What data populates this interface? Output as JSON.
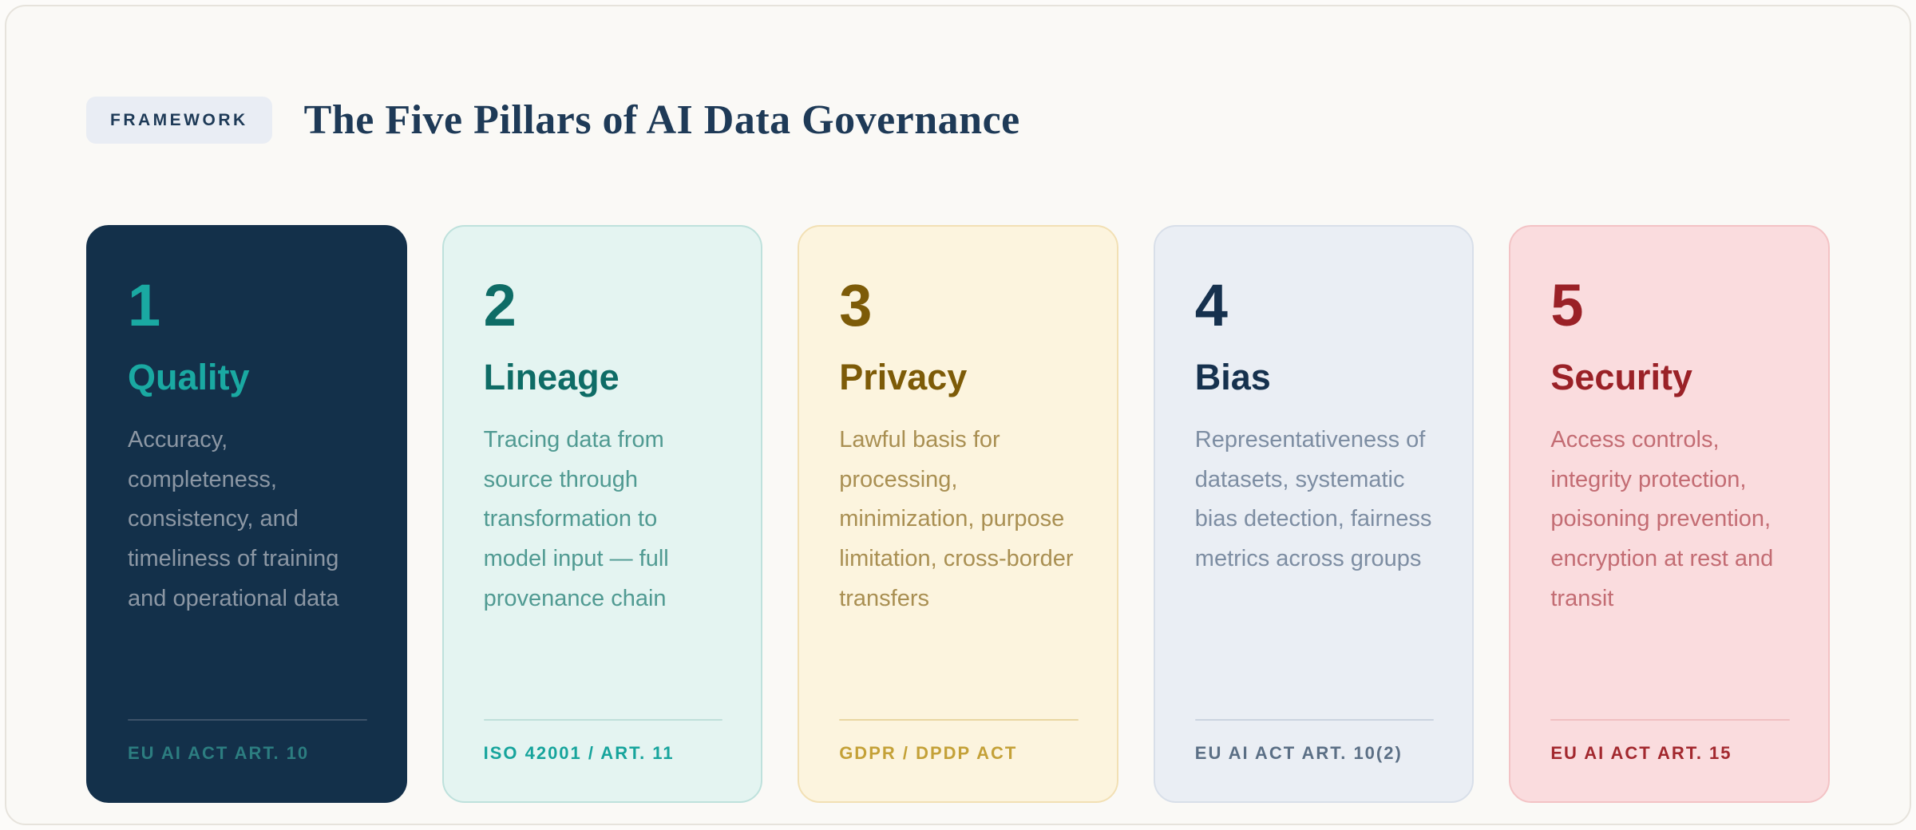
{
  "header": {
    "badge_label": "FRAMEWORK",
    "title": "The Five Pillars of AI Data Governance"
  },
  "pillars": [
    {
      "number": "1",
      "title": "Quality",
      "description": "Accuracy, completeness, consistency, and timeliness of training and operational data",
      "footer": "EU AI ACT ART. 10",
      "colors": {
        "bg": "#13304A",
        "border": "#13304A",
        "accent": "#1AA9A2",
        "body": "#8C97A4",
        "divider": "#3D5269",
        "footer": "#2C7D80"
      }
    },
    {
      "number": "2",
      "title": "Lineage",
      "description": "Tracing data from source through transformation to model input — full provenance chain",
      "footer": "ISO 42001 / ART. 11",
      "colors": {
        "bg": "#E4F4F1",
        "border": "#BEE1DC",
        "accent": "#0E6C66",
        "body": "#509A92",
        "divider": "#BFDFDA",
        "footer": "#16A49C"
      }
    },
    {
      "number": "3",
      "title": "Privacy",
      "description": "Lawful basis for processing, minimization, purpose limitation, cross-border transfers",
      "footer": "GDPR / DPDP ACT",
      "colors": {
        "bg": "#FCF4DE",
        "border": "#F2E0B4",
        "accent": "#7D5B08",
        "body": "#A98F52",
        "divider": "#E9D6A2",
        "footer": "#C4A138"
      }
    },
    {
      "number": "4",
      "title": "Bias",
      "description": "Representativeness of datasets, systematic bias detection, fairness metrics across groups",
      "footer": "EU AI ACT ART. 10(2)",
      "colors": {
        "bg": "#EAEEF4",
        "border": "#D8DFE9",
        "accent": "#16314E",
        "body": "#7D8DA2",
        "divider": "#CBD4E0",
        "footer": "#5B6F85"
      }
    },
    {
      "number": "5",
      "title": "Security",
      "description": "Access controls, integrity protection, poisoning prevention, encryption at rest and transit",
      "footer": "EU AI ACT ART. 15",
      "colors": {
        "bg": "#FADCDE",
        "border": "#F3C3C5",
        "accent": "#9A2127",
        "body": "#C36C73",
        "divider": "#F0BFC2",
        "footer": "#A2282E"
      }
    }
  ]
}
